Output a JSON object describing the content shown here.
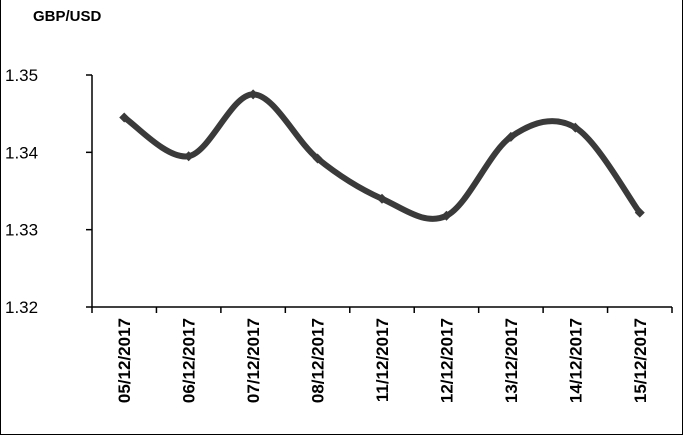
{
  "chart_data": {
    "type": "line",
    "title": "GBP/USD",
    "xlabel": "",
    "ylabel": "",
    "categories": [
      "05/12/2017",
      "06/12/2017",
      "07/12/2017",
      "08/12/2017",
      "11/12/2017",
      "12/12/2017",
      "13/12/2017",
      "14/12/2017",
      "15/12/2017"
    ],
    "series": [
      {
        "values": [
          1.3445,
          1.3395,
          1.3475,
          1.3392,
          1.334,
          1.3318,
          1.342,
          1.3432,
          1.3322
        ]
      }
    ],
    "ylim": [
      1.32,
      1.35
    ],
    "yticks": [
      "1.32",
      "1.33",
      "1.34",
      "1.35"
    ],
    "grid": false,
    "line_color": "#3a3a3a"
  }
}
